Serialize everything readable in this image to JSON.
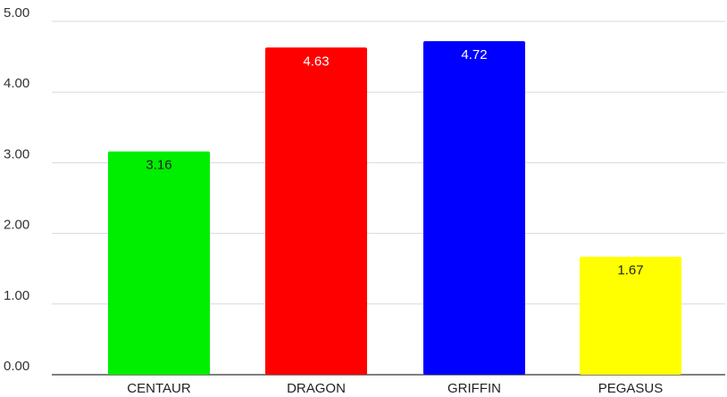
{
  "chart_data": {
    "type": "bar",
    "title": "",
    "xlabel": "",
    "ylabel": "",
    "categories": [
      "CENTAUR",
      "DRAGON",
      "GRIFFIN",
      "PEGASUS"
    ],
    "values": [
      3.16,
      4.63,
      4.72,
      1.67
    ],
    "data_labels": [
      "3.16",
      "4.63",
      "4.72",
      "1.67"
    ],
    "colors": [
      "#00ee00",
      "#ff0000",
      "#0000ff",
      "#ffff00"
    ],
    "label_colors": [
      "#222222",
      "#ffffff",
      "#ffffff",
      "#222222"
    ],
    "ylim": [
      0,
      5
    ],
    "yticks": [
      0,
      1,
      2,
      3,
      4,
      5
    ],
    "ytick_labels": [
      "0.00",
      "1.00",
      "2.00",
      "3.00",
      "4.00",
      "5.00"
    ],
    "grid": true,
    "legend": "none"
  }
}
